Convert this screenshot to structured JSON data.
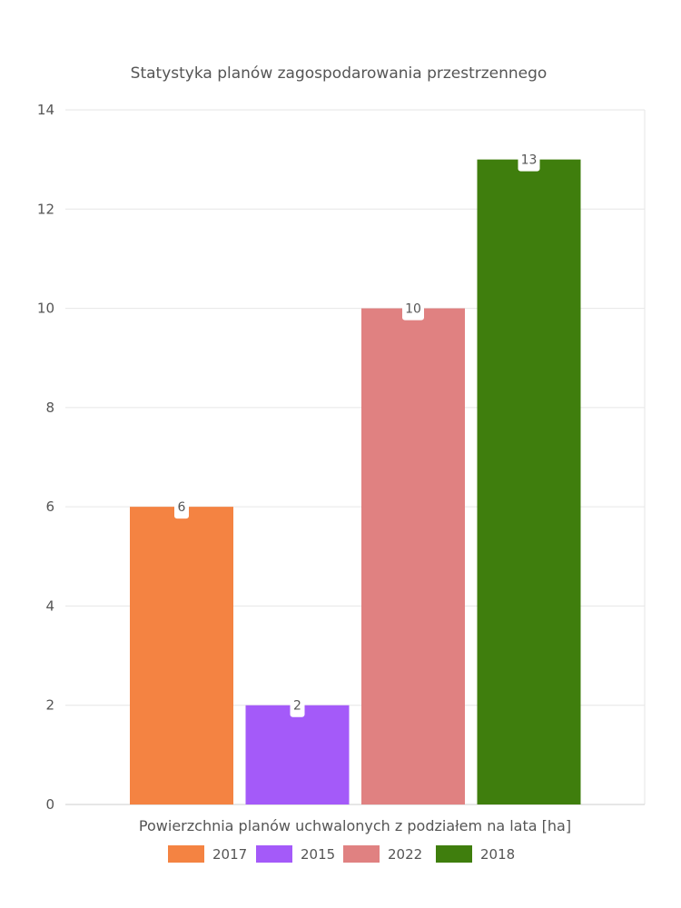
{
  "chart_data": {
    "type": "bar",
    "title": "Statystyka planów zagospodarowania przestrzennego",
    "xlabel": "Powierzchnia planów uchwalonych z podziałem na lata [ha]",
    "ylabel": "",
    "ylim": [
      0,
      14
    ],
    "yticks": [
      0,
      2,
      4,
      6,
      8,
      10,
      12,
      14
    ],
    "grid": true,
    "legend_position": "bottom",
    "categories": [
      "2017",
      "2015",
      "2022",
      "2018"
    ],
    "values": [
      6,
      2,
      10,
      13
    ],
    "colors": [
      "#f48342",
      "#a45af9",
      "#e08181",
      "#3f7e0d"
    ],
    "data_labels": [
      "6",
      "2",
      "10",
      "13"
    ]
  }
}
